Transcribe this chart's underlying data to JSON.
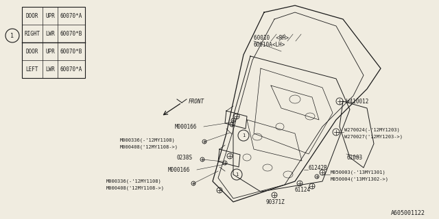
{
  "bg_color": "#f0ece0",
  "part_number": "A605001122",
  "table_rows": [
    [
      "DOOR",
      "UPR",
      "60070*A"
    ],
    [
      "RIGHT",
      "LWR",
      "60070*B"
    ],
    [
      "DOOR",
      "UPR",
      "60070*B"
    ],
    [
      "LEFT",
      "LWR",
      "60070*A"
    ]
  ],
  "line_color": "#1a1a1a",
  "text_color": "#1a1a1a",
  "font_size": 5.2
}
